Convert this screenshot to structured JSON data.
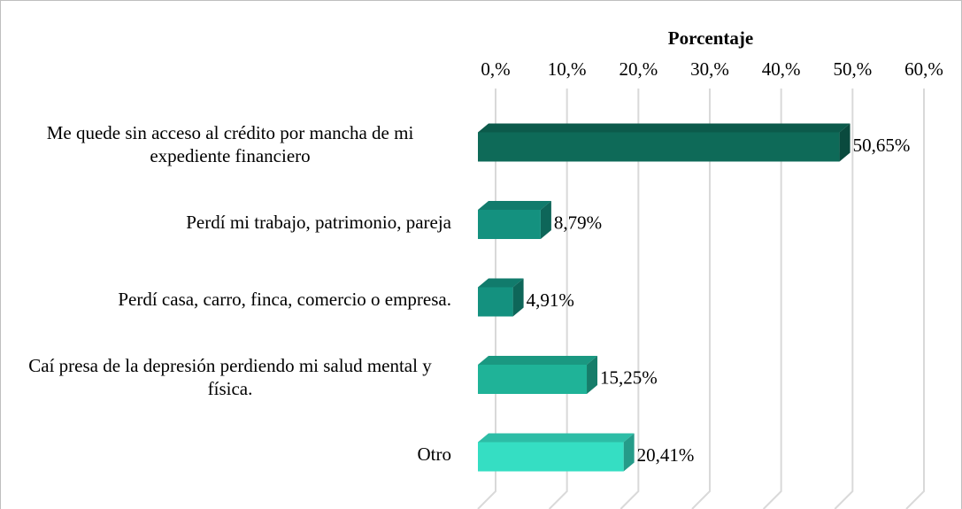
{
  "chart_data": {
    "type": "bar",
    "orientation": "horizontal",
    "x_axis_title": "Porcentaje",
    "categories": [
      "Me quede sin acceso al crédito por mancha de mi expediente financiero",
      "Perdí mi trabajo, patrimonio, pareja",
      "Perdí casa, carro, finca, comercio o empresa.",
      "Caí presa de la depresión perdiendo mi salud mental y física.",
      "Otro"
    ],
    "values": [
      50.65,
      8.79,
      4.91,
      15.25,
      20.41
    ],
    "value_labels": [
      "50,65%",
      "8,79%",
      "4,91%",
      "15,25%",
      "20,41%"
    ],
    "colors": [
      "#0e6a58",
      "#14917f",
      "#14917f",
      "#1fb398",
      "#35dec3"
    ],
    "xlim": [
      0,
      60
    ],
    "xticks": [
      {
        "value": 0,
        "label": "0,%"
      },
      {
        "value": 10,
        "label": "10,%"
      },
      {
        "value": 20,
        "label": "20,%"
      },
      {
        "value": 30,
        "label": "30,%"
      },
      {
        "value": 40,
        "label": "40,%"
      },
      {
        "value": 50,
        "label": "50,%"
      },
      {
        "value": 60,
        "label": "60,%"
      }
    ],
    "grid": true
  }
}
